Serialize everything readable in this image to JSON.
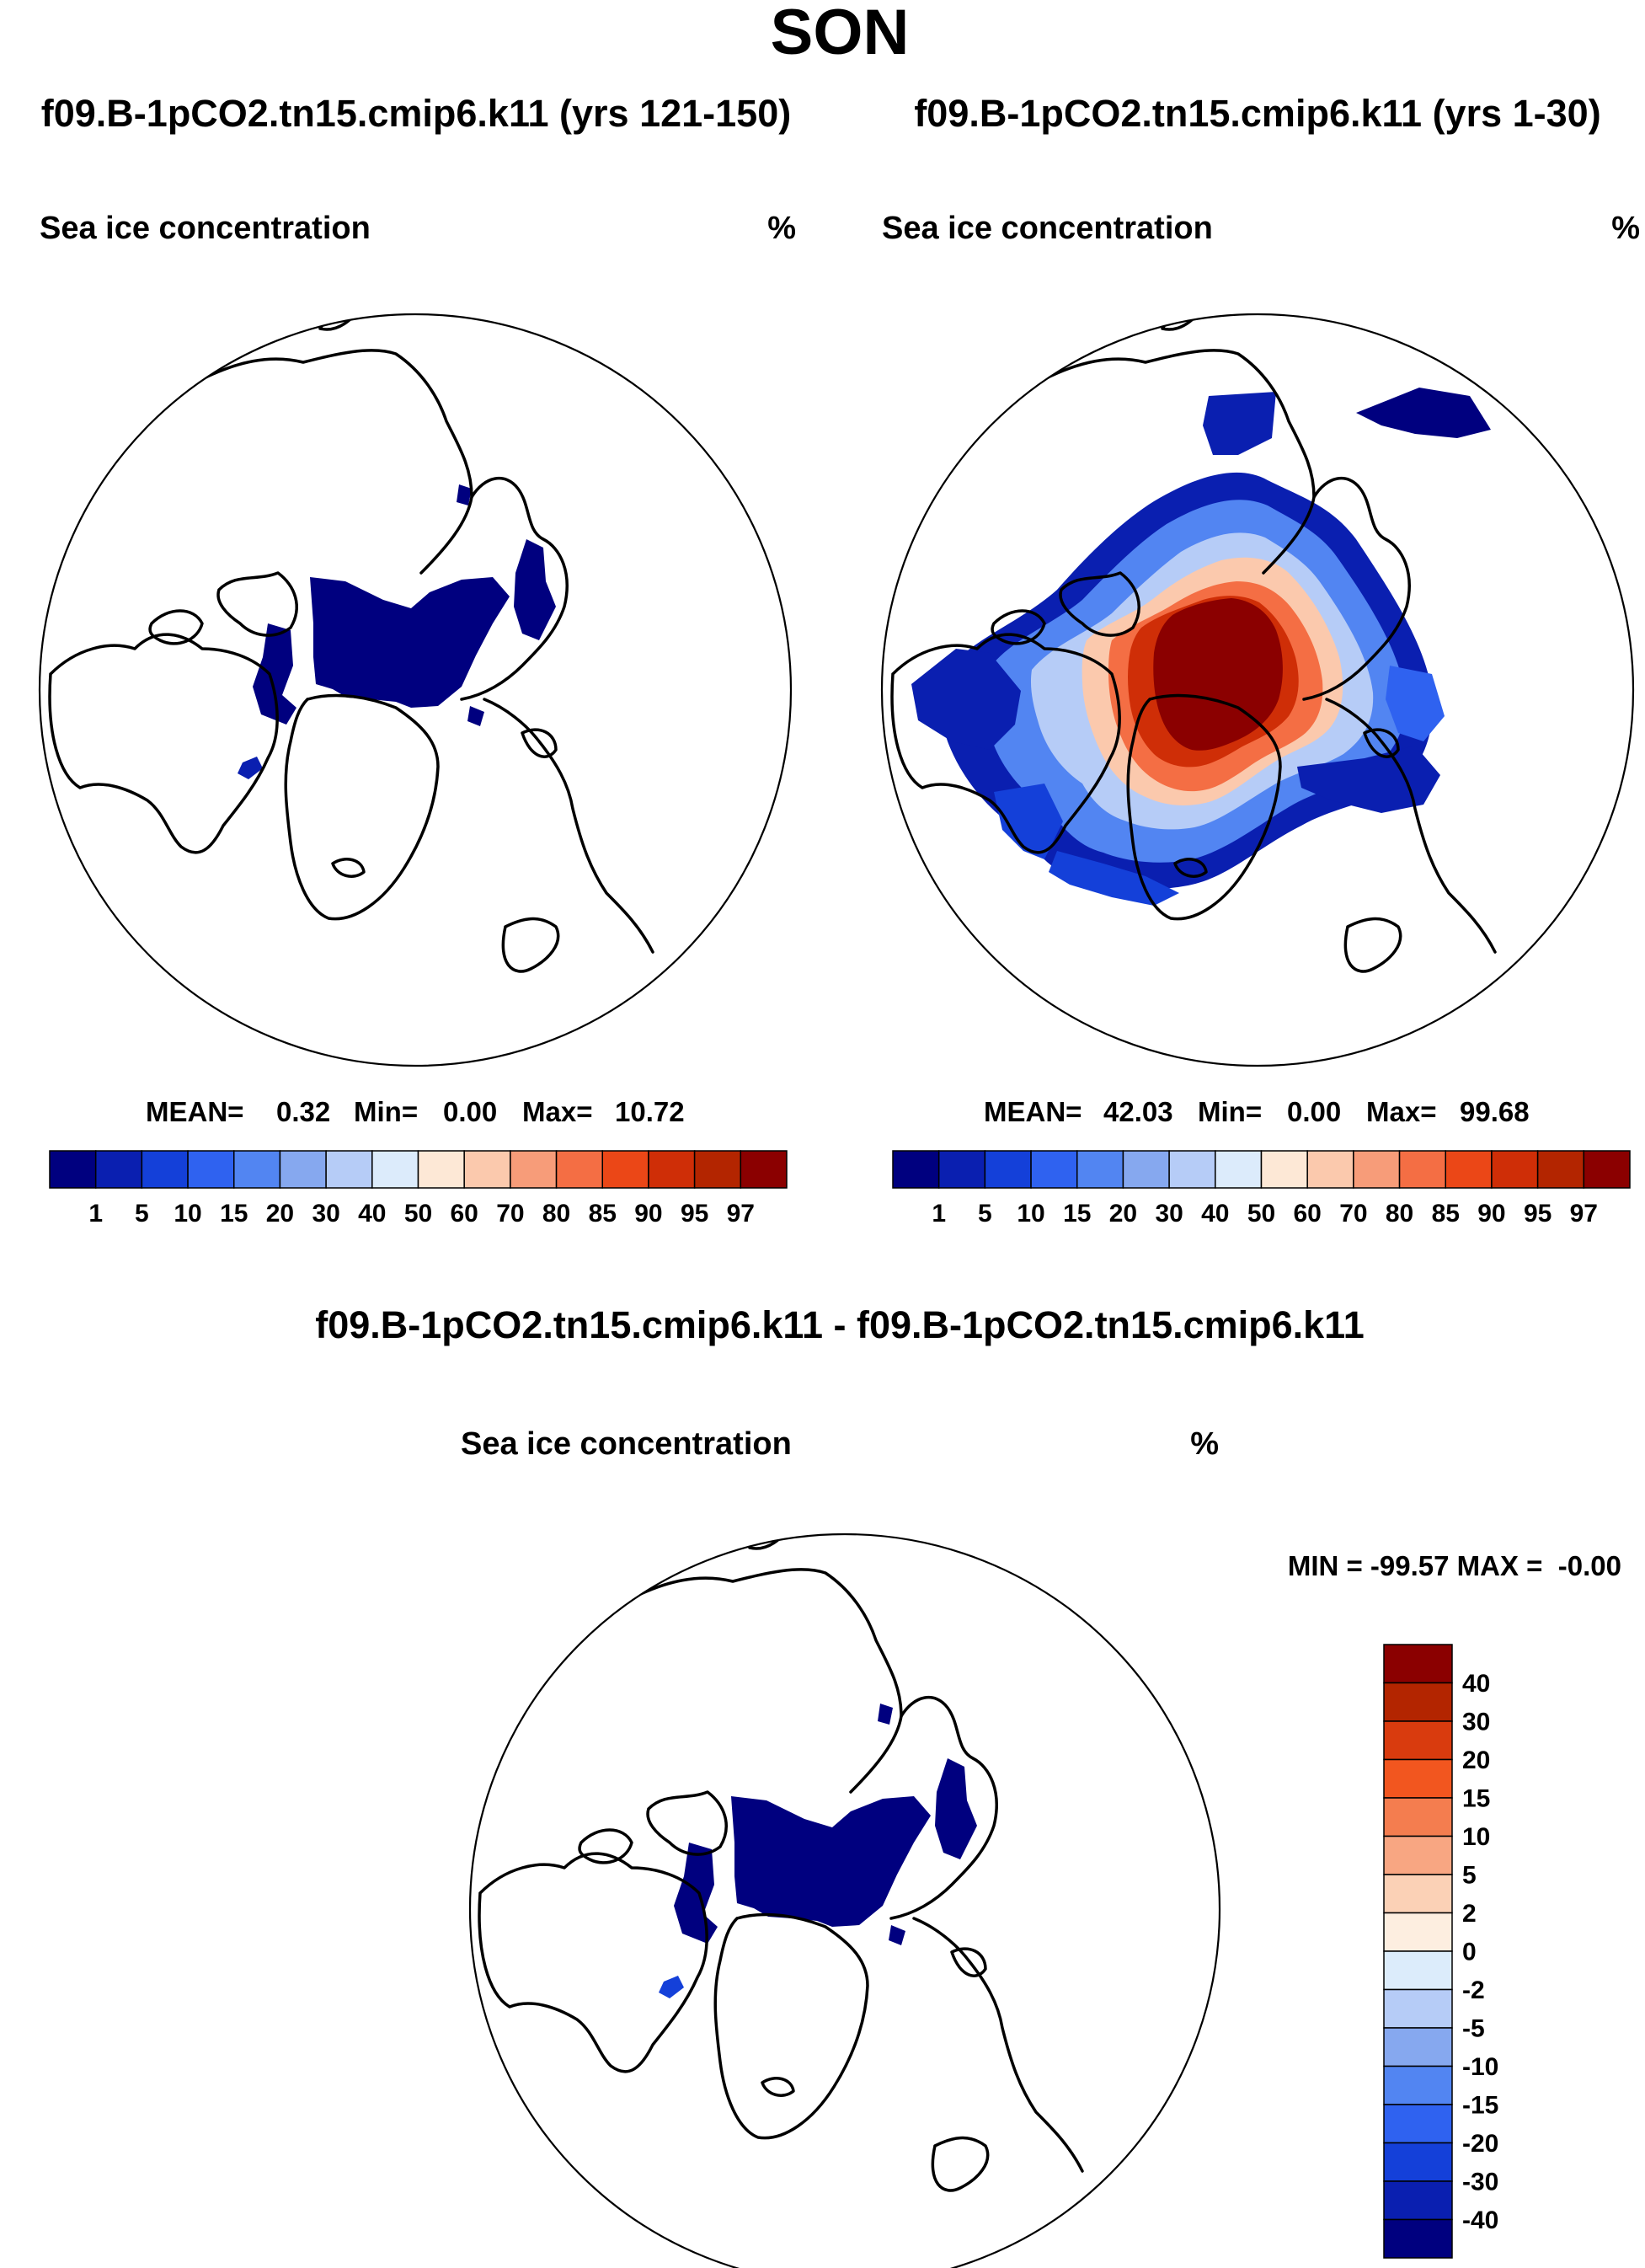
{
  "figure_title": "SON",
  "chart_data": [
    {
      "type": "polar-map",
      "title": "f09.B-1pCO2.tn15.cmip6.k11 (yrs 121-150)",
      "variable": "Sea ice concentration",
      "units": "%",
      "stats": {
        "mean_label": "MEAN=",
        "mean": "0.32",
        "min_label": "Min=",
        "min": "0.00",
        "max_label": "Max=",
        "max": "10.72"
      },
      "colorbar": {
        "orientation": "horizontal",
        "levels": [
          "1",
          "5",
          "10",
          "15",
          "20",
          "30",
          "40",
          "50",
          "60",
          "70",
          "80",
          "85",
          "90",
          "95",
          "97"
        ],
        "colors": [
          "#00007f",
          "#0a1fb0",
          "#1440d9",
          "#2f62f0",
          "#5285f2",
          "#86a8ef",
          "#b6ccf7",
          "#dcebfb",
          "#fde8d6",
          "#fbc9ad",
          "#f79c79",
          "#f46e44",
          "#eb4717",
          "#cf2e07",
          "#b32500",
          "#8b0000"
        ]
      }
    },
    {
      "type": "polar-map",
      "title": "f09.B-1pCO2.tn15.cmip6.k11 (yrs 1-30)",
      "variable": "Sea ice concentration",
      "units": "%",
      "stats": {
        "mean_label": "MEAN=",
        "mean": "42.03",
        "min_label": "Min=",
        "min": "0.00",
        "max_label": "Max=",
        "max": "99.68"
      },
      "colorbar": {
        "orientation": "horizontal",
        "levels": [
          "1",
          "5",
          "10",
          "15",
          "20",
          "30",
          "40",
          "50",
          "60",
          "70",
          "80",
          "85",
          "90",
          "95",
          "97"
        ],
        "colors": [
          "#00007f",
          "#0a1fb0",
          "#1440d9",
          "#2f62f0",
          "#5285f2",
          "#86a8ef",
          "#b6ccf7",
          "#dcebfb",
          "#fde8d6",
          "#fbc9ad",
          "#f79c79",
          "#f46e44",
          "#eb4717",
          "#cf2e07",
          "#b32500",
          "#8b0000"
        ]
      }
    },
    {
      "type": "polar-map",
      "title": "f09.B-1pCO2.tn15.cmip6.k11 - f09.B-1pCO2.tn15.cmip6.k11",
      "variable": "Sea ice concentration",
      "units": "%",
      "stats_text": "MIN = -99.57 MAX =  -0.00",
      "colorbar": {
        "orientation": "vertical",
        "levels": [
          "40",
          "30",
          "20",
          "15",
          "10",
          "5",
          "2",
          "0",
          "-2",
          "-5",
          "-10",
          "-15",
          "-20",
          "-30",
          "-40"
        ],
        "colors": [
          "#8b0000",
          "#b32500",
          "#d93b0e",
          "#f2561f",
          "#f47d4f",
          "#f8a682",
          "#fbd1b6",
          "#fdeee0",
          "#dcecfb",
          "#b6ccf7",
          "#86a8ef",
          "#5285f2",
          "#2f62f0",
          "#1440d9",
          "#0a1fb0",
          "#00007f"
        ]
      }
    }
  ]
}
